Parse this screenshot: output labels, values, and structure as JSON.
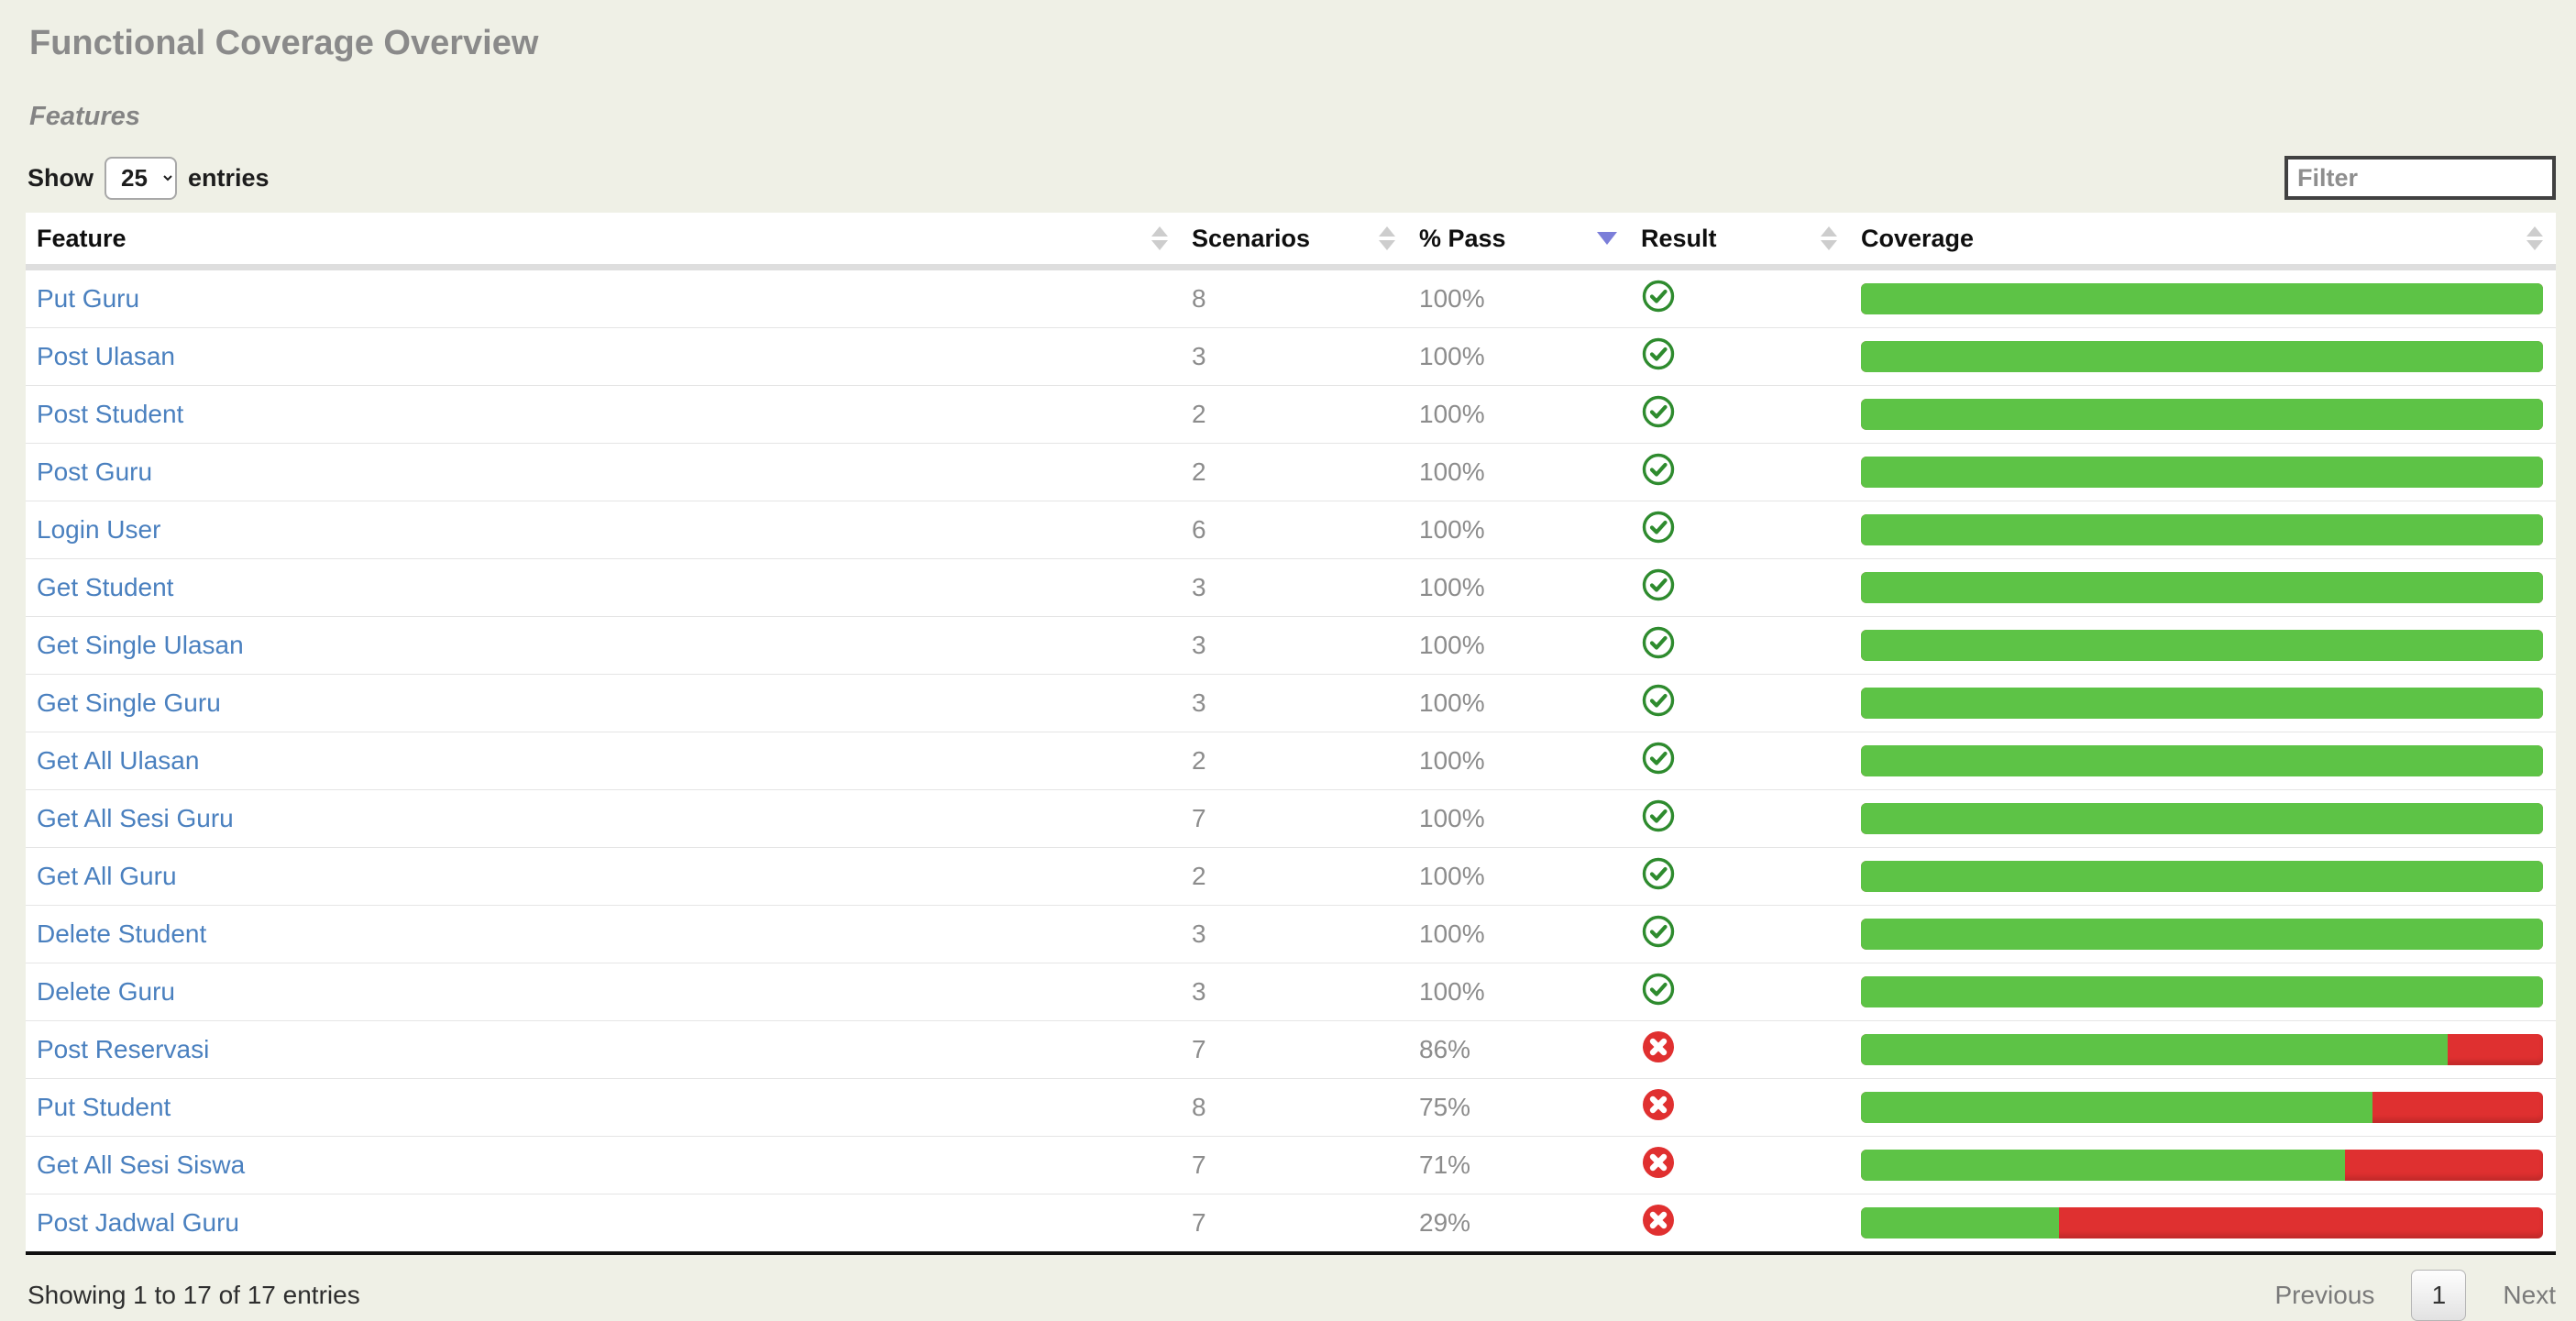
{
  "page": {
    "title": "Functional Coverage Overview",
    "subtitle": "Features"
  },
  "controls": {
    "show_label": "Show",
    "entries_label": "entries",
    "page_size": "25",
    "filter_placeholder": "Filter"
  },
  "table": {
    "columns": [
      {
        "label": "Feature",
        "sort": "both"
      },
      {
        "label": "Scenarios",
        "sort": "both"
      },
      {
        "label": "% Pass",
        "sort": "desc"
      },
      {
        "label": "Result",
        "sort": "both"
      },
      {
        "label": "Coverage",
        "sort": "both"
      }
    ],
    "rows": [
      {
        "feature": "Put Guru",
        "scenarios": "8",
        "pass_pct": "100%",
        "result": "pass",
        "coverage_pass": 100
      },
      {
        "feature": "Post Ulasan",
        "scenarios": "3",
        "pass_pct": "100%",
        "result": "pass",
        "coverage_pass": 100
      },
      {
        "feature": "Post Student",
        "scenarios": "2",
        "pass_pct": "100%",
        "result": "pass",
        "coverage_pass": 100
      },
      {
        "feature": "Post Guru",
        "scenarios": "2",
        "pass_pct": "100%",
        "result": "pass",
        "coverage_pass": 100
      },
      {
        "feature": "Login User",
        "scenarios": "6",
        "pass_pct": "100%",
        "result": "pass",
        "coverage_pass": 100
      },
      {
        "feature": "Get Student",
        "scenarios": "3",
        "pass_pct": "100%",
        "result": "pass",
        "coverage_pass": 100
      },
      {
        "feature": "Get Single Ulasan",
        "scenarios": "3",
        "pass_pct": "100%",
        "result": "pass",
        "coverage_pass": 100
      },
      {
        "feature": "Get Single Guru",
        "scenarios": "3",
        "pass_pct": "100%",
        "result": "pass",
        "coverage_pass": 100
      },
      {
        "feature": "Get All Ulasan",
        "scenarios": "2",
        "pass_pct": "100%",
        "result": "pass",
        "coverage_pass": 100
      },
      {
        "feature": "Get All Sesi Guru",
        "scenarios": "7",
        "pass_pct": "100%",
        "result": "pass",
        "coverage_pass": 100
      },
      {
        "feature": "Get All Guru",
        "scenarios": "2",
        "pass_pct": "100%",
        "result": "pass",
        "coverage_pass": 100
      },
      {
        "feature": "Delete Student",
        "scenarios": "3",
        "pass_pct": "100%",
        "result": "pass",
        "coverage_pass": 100
      },
      {
        "feature": "Delete Guru",
        "scenarios": "3",
        "pass_pct": "100%",
        "result": "pass",
        "coverage_pass": 100
      },
      {
        "feature": "Post Reservasi",
        "scenarios": "7",
        "pass_pct": "86%",
        "result": "fail",
        "coverage_pass": 86
      },
      {
        "feature": "Put Student",
        "scenarios": "8",
        "pass_pct": "75%",
        "result": "fail",
        "coverage_pass": 75
      },
      {
        "feature": "Get All Sesi Siswa",
        "scenarios": "7",
        "pass_pct": "71%",
        "result": "fail",
        "coverage_pass": 71
      },
      {
        "feature": "Post Jadwal Guru",
        "scenarios": "7",
        "pass_pct": "29%",
        "result": "fail",
        "coverage_pass": 29
      }
    ]
  },
  "footer": {
    "summary": "Showing 1 to 17 of 17 entries",
    "previous_label": "Previous",
    "current_page": "1",
    "next_label": "Next"
  },
  "colors": {
    "page_background": "#eff0e6",
    "coverage_pass_green": "#5dc346",
    "coverage_fail_red": "#df3030",
    "pass_icon_green": "#2e8b2e",
    "fail_icon_red": "#e03030",
    "feature_link_blue": "#4a80bf",
    "active_sort_arrow": "#7b7ed9"
  }
}
